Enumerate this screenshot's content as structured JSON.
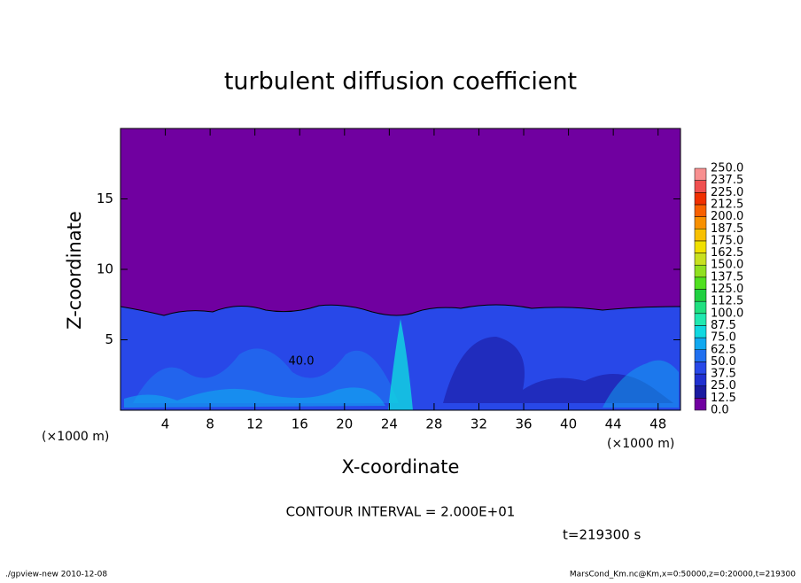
{
  "chart_data": {
    "type": "contour",
    "title": "turbulent diffusion coefficient",
    "x_label": "X-coordinate",
    "y_label": "Z-coordinate",
    "x_unit": "(×1000 m)",
    "y_unit": "(×1000 m)",
    "xlim": [
      0,
      50
    ],
    "ylim": [
      0,
      20
    ],
    "xticks": [
      4,
      8,
      12,
      16,
      20,
      24,
      28,
      32,
      36,
      40,
      44,
      48
    ],
    "yticks": [
      5,
      10,
      15
    ],
    "contour_label": "40.0",
    "contour_interval": "CONTOUR INTERVAL = 2.000E+01",
    "time": "t=219300 s",
    "footer_left": "./gpview-new  2010-12-08",
    "footer_right": "MarsCond_Km.nc@Km,x=0:50000,z=0:20000,t=219300",
    "colorbar": {
      "levels": [
        {
          "value": 0,
          "label": "0.0"
        },
        {
          "value": 12.5,
          "label": "12.5"
        },
        {
          "value": 25,
          "label": "25.0"
        },
        {
          "value": 37.5,
          "label": "37.5"
        },
        {
          "value": 50,
          "label": "50.0"
        },
        {
          "value": 62.5,
          "label": "62.5"
        },
        {
          "value": 75,
          "label": "75.0"
        },
        {
          "value": 87.5,
          "label": "87.5"
        },
        {
          "value": 100,
          "label": "100.0"
        },
        {
          "value": 112.5,
          "label": "112.5"
        },
        {
          "value": 125,
          "label": "125.0"
        },
        {
          "value": 137.5,
          "label": "137.5"
        },
        {
          "value": 150,
          "label": "150.0"
        },
        {
          "value": 162.5,
          "label": "162.5"
        },
        {
          "value": 175,
          "label": "175.0"
        },
        {
          "value": 187.5,
          "label": "187.5"
        },
        {
          "value": 200,
          "label": "200.0"
        },
        {
          "value": 212.5,
          "label": "212.5"
        },
        {
          "value": 225,
          "label": "225.0"
        },
        {
          "value": 237.5,
          "label": "237.5"
        },
        {
          "value": 250,
          "label": "250.0"
        }
      ],
      "colors": [
        "#7000a0",
        "#1a1aa0",
        "#2030d0",
        "#2848e8",
        "#2070f0",
        "#10a8f0",
        "#10d8e0",
        "#20e8b0",
        "#20e080",
        "#20d040",
        "#50e020",
        "#90e020",
        "#c8e020",
        "#f0e000",
        "#f8c000",
        "#f89000",
        "#f86000",
        "#f03000",
        "#f05050",
        "#f89090"
      ]
    }
  }
}
